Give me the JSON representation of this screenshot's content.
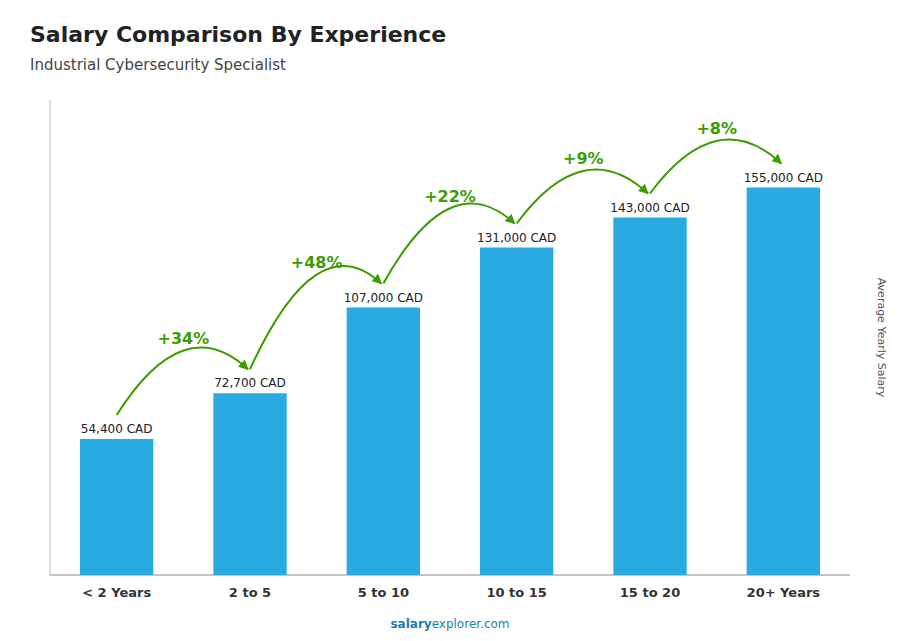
{
  "chart_data": {
    "type": "bar",
    "title": "Salary Comparison By Experience",
    "subtitle": "Industrial Cybersecurity Specialist",
    "ylabel": "Average Yearly Salary",
    "categories": [
      "< 2 Years",
      "2 to 5",
      "5 to 10",
      "10 to 15",
      "15 to 20",
      "20+ Years"
    ],
    "values": [
      54400,
      72700,
      107000,
      131000,
      143000,
      155000
    ],
    "value_labels": [
      "54,400 CAD",
      "72,700 CAD",
      "107,000 CAD",
      "131,000 CAD",
      "143,000 CAD",
      "155,000 CAD"
    ],
    "data_labels": true,
    "color": "#29ABE2",
    "ylim": [
      0,
      190000
    ],
    "tick_labels": "x",
    "grid": false,
    "annotations": [
      {
        "text": "+34%",
        "color": "#3A9D00"
      },
      {
        "text": "+48%",
        "color": "#3A9D00"
      },
      {
        "text": "+22%",
        "color": "#3A9D00"
      },
      {
        "text": "+9%",
        "color": "#3A9D00"
      },
      {
        "text": "+8%",
        "color": "#3A9D00"
      }
    ],
    "footer": [
      "salary",
      "explorer.com"
    ]
  }
}
